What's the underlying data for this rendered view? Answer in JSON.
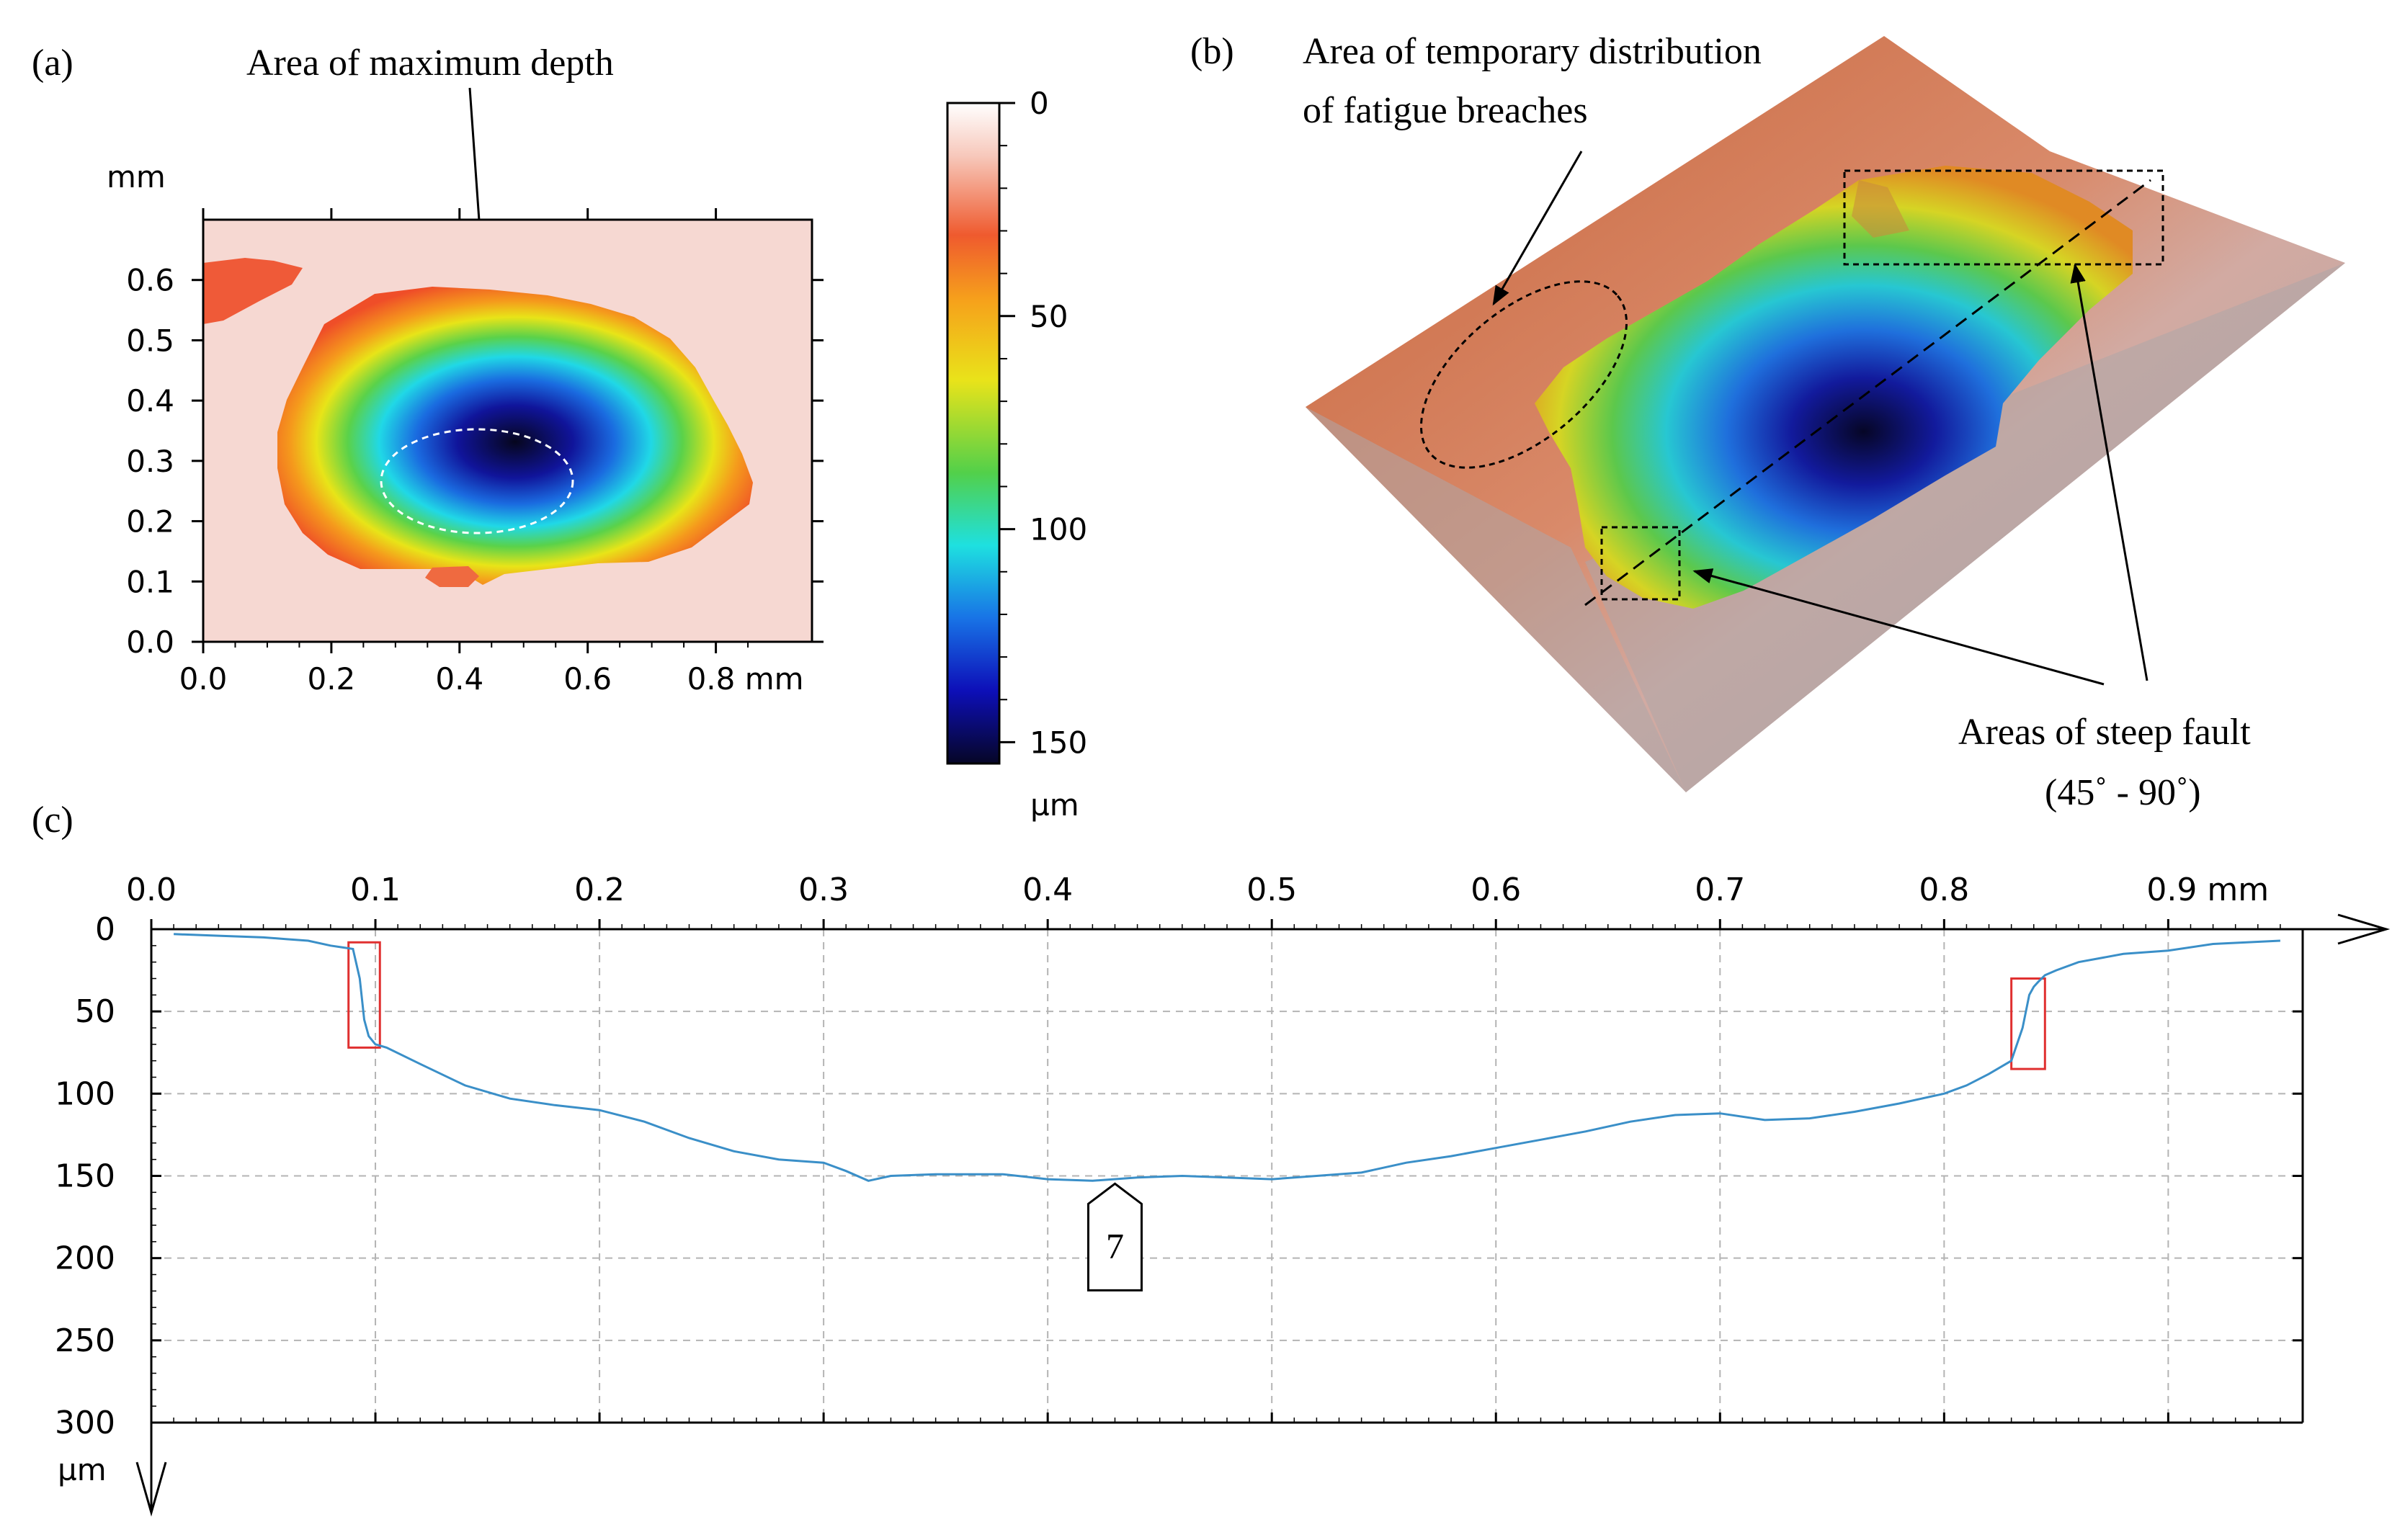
{
  "colors": {
    "line": "#3a8fc8",
    "grid": "#b4b4b4",
    "highlight_box": "#e03030",
    "annotation": "#000000"
  },
  "panel_a": {
    "label": "(a)",
    "annotation": "Area of maximum depth",
    "x_unit_tick": "0.8 mm",
    "y_unit": "mm",
    "x_ticks": [
      "0.0",
      "0.2",
      "0.4",
      "0.6",
      "0.8 mm"
    ],
    "y_ticks": [
      "0.0",
      "0.1",
      "0.2",
      "0.3",
      "0.4",
      "0.5",
      "0.6"
    ]
  },
  "colorbar": {
    "ticks": [
      "0",
      "50",
      "100",
      "150"
    ],
    "unit": "µm"
  },
  "panel_b": {
    "label": "(b)",
    "annotation_top_line1": "Area of temporary distribution",
    "annotation_top_line2": "of fatigue breaches",
    "annotation_bottom_line1": "Areas of steep fault",
    "annotation_bottom_line2": "(45˚ - 90˚)"
  },
  "panel_c": {
    "label": "(c)",
    "marker_label": "7"
  },
  "chart_data": {
    "type": "line",
    "title": "",
    "xlabel": "",
    "ylabel": "",
    "x_unit": "mm",
    "y_unit": "µm",
    "xlim": [
      0.0,
      0.96
    ],
    "ylim": [
      0,
      300
    ],
    "y_inverted": true,
    "grid": true,
    "x_ticks": [
      "0.0",
      "0.1",
      "0.2",
      "0.3",
      "0.4",
      "0.5",
      "0.6",
      "0.7",
      "0.8",
      "0.9 mm"
    ],
    "y_ticks": [
      "0",
      "50",
      "100",
      "150",
      "200",
      "250",
      "300"
    ],
    "y_unit_label": "µm",
    "series": [
      {
        "x": [
          0.01,
          0.03,
          0.05,
          0.06,
          0.07,
          0.08,
          0.085,
          0.09,
          0.093,
          0.095,
          0.097,
          0.1,
          0.105,
          0.12,
          0.14,
          0.16,
          0.18,
          0.2,
          0.22,
          0.24,
          0.26,
          0.28,
          0.3,
          0.31,
          0.32,
          0.33,
          0.35,
          0.38,
          0.4,
          0.42,
          0.44,
          0.46,
          0.48,
          0.5,
          0.52,
          0.54,
          0.56,
          0.58,
          0.6,
          0.62,
          0.64,
          0.66,
          0.68,
          0.7,
          0.72,
          0.74,
          0.76,
          0.78,
          0.8,
          0.81,
          0.82,
          0.83,
          0.835,
          0.838,
          0.84,
          0.842,
          0.845,
          0.85,
          0.86,
          0.88,
          0.9,
          0.92,
          0.95
        ],
        "y": [
          3,
          4,
          5,
          6,
          7,
          10,
          11,
          12,
          30,
          55,
          65,
          70,
          72,
          82,
          95,
          103,
          107,
          110,
          117,
          127,
          135,
          140,
          142,
          147,
          153,
          150,
          149,
          149,
          152,
          153,
          151,
          150,
          151,
          152,
          150,
          148,
          142,
          138,
          133,
          128,
          123,
          117,
          113,
          112,
          116,
          115,
          111,
          106,
          100,
          95,
          88,
          80,
          60,
          40,
          35,
          32,
          28,
          25,
          20,
          15,
          13,
          9,
          7
        ]
      }
    ],
    "highlight_boxes": [
      {
        "x": [
          0.088,
          0.102
        ],
        "y": [
          8,
          72
        ]
      },
      {
        "x": [
          0.83,
          0.845
        ],
        "y": [
          30,
          85
        ]
      }
    ],
    "marker": {
      "x": 0.43,
      "y": 153,
      "label": "7"
    }
  }
}
